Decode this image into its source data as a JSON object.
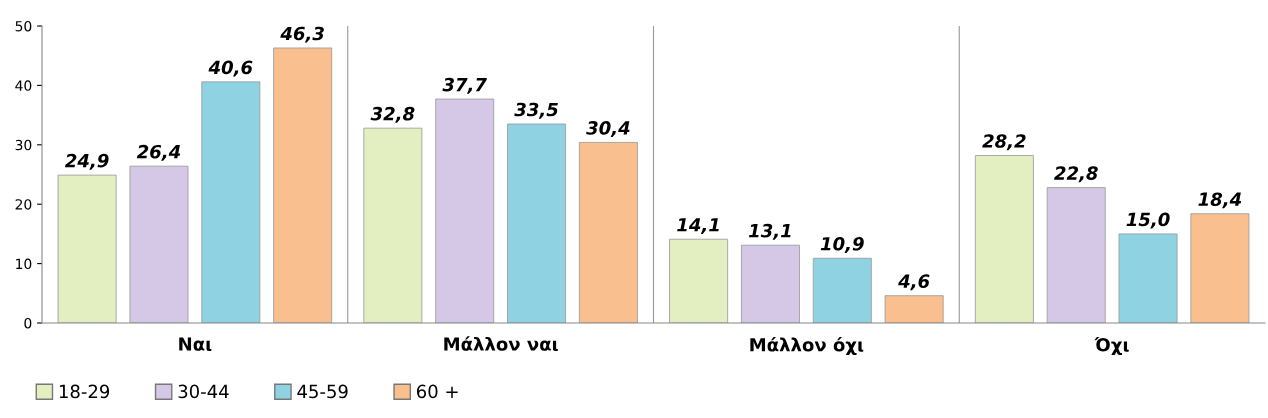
{
  "chart_data": {
    "type": "bar",
    "categories": [
      "Ναι",
      "Μάλλον ναι",
      "Μάλλον όχι",
      "Όχι"
    ],
    "series": [
      {
        "name": "18-29",
        "color": "#e3efc0",
        "values": [
          24.9,
          32.8,
          14.1,
          28.2
        ],
        "value_labels": [
          "24,9",
          "32,8",
          "14,1",
          "28,2"
        ]
      },
      {
        "name": "30-44",
        "color": "#d5c8e6",
        "values": [
          26.4,
          37.7,
          13.1,
          22.8
        ],
        "value_labels": [
          "26,4",
          "37,7",
          "13,1",
          "22,8"
        ]
      },
      {
        "name": "45-59",
        "color": "#8fd3e3",
        "values": [
          40.6,
          33.5,
          10.9,
          15.0
        ],
        "value_labels": [
          "40,6",
          "33,5",
          "10,9",
          "15,0"
        ]
      },
      {
        "name": "60 +",
        "color": "#f9bf8f",
        "values": [
          46.3,
          30.4,
          4.6,
          18.4
        ],
        "value_labels": [
          "46,3",
          "30,4",
          "4,6",
          "18,4"
        ]
      }
    ],
    "ylim": [
      0,
      50
    ],
    "yticks": [
      0,
      10,
      20,
      30,
      40,
      50
    ],
    "grid": "x",
    "legend": "bottom left"
  }
}
